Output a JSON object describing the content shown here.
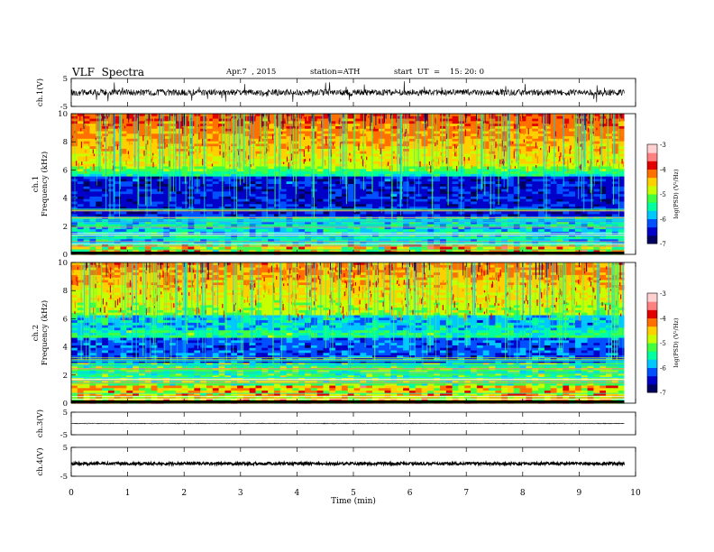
{
  "header": {
    "title": "VLF  Spectra",
    "date": "Apr.7  , 2015",
    "station": "station=ATH",
    "start": "start  UT  =    15: 20: 0"
  },
  "chart_data": {
    "type": "multi-panel spectrogram",
    "xaxis": {
      "label": "Time  (min)",
      "range": [
        0,
        10
      ],
      "ticks": [
        "0",
        "1",
        "2",
        "3",
        "4",
        "5",
        "6",
        "7",
        "8",
        "9",
        "10"
      ]
    },
    "panels": [
      {
        "id": "ch1-waveform",
        "type": "line",
        "ylabel": "ch.1(V)",
        "ylim": [
          -5,
          5
        ],
        "ytick_labels": [
          "5",
          "-5"
        ],
        "data_end_min": 9.8
      },
      {
        "id": "ch1-spectrogram",
        "type": "heatmap",
        "ylabel": "ch.1\nFrequency  (kHz)",
        "ylim": [
          0,
          10
        ],
        "ytick_labels": [
          "10",
          "8",
          "6",
          "4",
          "2",
          "0"
        ]
      },
      {
        "id": "ch2-spectrogram",
        "type": "heatmap",
        "ylabel": "ch.2\nFrequency  (kHz)",
        "ylim": [
          0,
          10
        ],
        "ytick_labels": [
          "10",
          "8",
          "6",
          "4",
          "2",
          "0"
        ]
      },
      {
        "id": "ch3-waveform",
        "type": "line",
        "ylabel": "ch.3(V)",
        "ylim": [
          -5,
          5
        ],
        "ytick_labels": [
          "5",
          "-5"
        ]
      },
      {
        "id": "ch4-waveform",
        "type": "line",
        "ylabel": "ch.4(V)",
        "ylim": [
          -5,
          5
        ],
        "ytick_labels": [
          "5",
          "-5"
        ]
      }
    ],
    "colorbar": {
      "label": "log(PSD) (V²/Hz)",
      "range": [
        -7,
        -3
      ],
      "tick_labels": [
        "-3",
        "-4",
        "-5",
        "-6",
        "-7"
      ],
      "colors": [
        "#000060",
        "#0000c8",
        "#0050ff",
        "#00c8ff",
        "#00ffa0",
        "#40ff40",
        "#c8ff00",
        "#ffd000",
        "#ff7000",
        "#e00000",
        "#ff8080",
        "#ffd0d0"
      ]
    }
  }
}
